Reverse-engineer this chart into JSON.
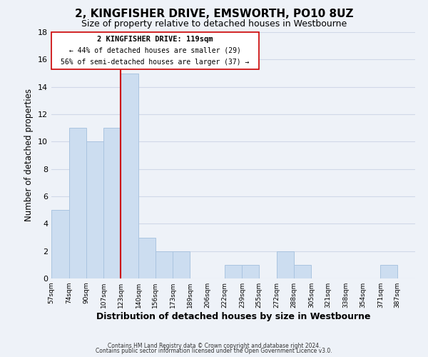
{
  "title": "2, KINGFISHER DRIVE, EMSWORTH, PO10 8UZ",
  "subtitle": "Size of property relative to detached houses in Westbourne",
  "xlabel": "Distribution of detached houses by size in Westbourne",
  "ylabel": "Number of detached properties",
  "footnote1": "Contains HM Land Registry data © Crown copyright and database right 2024.",
  "footnote2": "Contains public sector information licensed under the Open Government Licence v3.0.",
  "bar_edges": [
    57,
    74,
    90,
    107,
    123,
    140,
    156,
    173,
    189,
    206,
    222,
    239,
    255,
    272,
    288,
    305,
    321,
    338,
    354,
    371,
    387,
    404
  ],
  "bar_heights": [
    5,
    11,
    10,
    11,
    15,
    3,
    2,
    2,
    0,
    0,
    1,
    1,
    0,
    2,
    1,
    0,
    0,
    0,
    0,
    1,
    0
  ],
  "bar_color": "#ccddf0",
  "bar_edgecolor": "#aac4e0",
  "vline_x": 123,
  "vline_color": "#cc0000",
  "ylim": [
    0,
    18
  ],
  "yticks": [
    0,
    2,
    4,
    6,
    8,
    10,
    12,
    14,
    16,
    18
  ],
  "tick_labels": [
    "57sqm",
    "74sqm",
    "90sqm",
    "107sqm",
    "123sqm",
    "140sqm",
    "156sqm",
    "173sqm",
    "189sqm",
    "206sqm",
    "222sqm",
    "239sqm",
    "255sqm",
    "272sqm",
    "288sqm",
    "305sqm",
    "321sqm",
    "338sqm",
    "354sqm",
    "371sqm",
    "387sqm"
  ],
  "annotation_text1": "2 KINGFISHER DRIVE: 119sqm",
  "annotation_text2": "← 44% of detached houses are smaller (29)",
  "annotation_text3": "56% of semi-detached houses are larger (37) →",
  "grid_color": "#d0d8e8",
  "background_color": "#eef2f8"
}
